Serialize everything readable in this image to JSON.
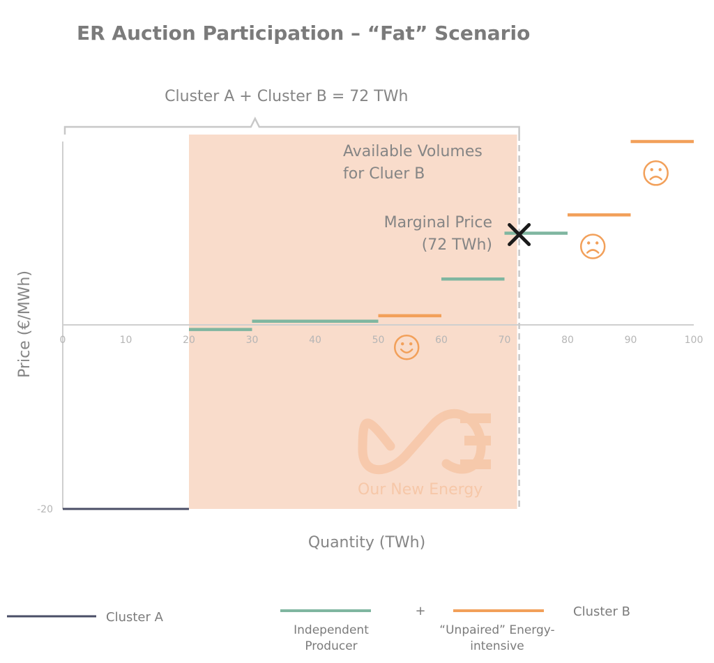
{
  "chart_data": {
    "type": "line",
    "title": "ER Auction Participation – “Fat” Scenario",
    "xlabel": "Quantity (TWh)",
    "ylabel": "Price (€/MWh)",
    "xlim": [
      0,
      100
    ],
    "ylim": [
      -20,
      20
    ],
    "x_ticks": [
      "0",
      "10",
      "20",
      "30",
      "40",
      "50",
      "60",
      "70",
      "80",
      "90",
      "100"
    ],
    "y_ticks": [
      "-20"
    ],
    "grid": false,
    "colors": {
      "cluster_a": "#4a4e66",
      "independent": "#7fb6a0",
      "unpaired": "#f2a05a",
      "shade": "#f9dccb"
    },
    "series": [
      {
        "name": "Cluster A",
        "color": "#4a4e66",
        "segments": [
          {
            "x": [
              0,
              20
            ],
            "y": -20
          }
        ]
      },
      {
        "name": "Independent Producer",
        "color": "#7fb6a0",
        "segments": [
          {
            "x": [
              20,
              30
            ],
            "y": -0.5
          },
          {
            "x": [
              30,
              50
            ],
            "y": 0.4
          },
          {
            "x": [
              60,
              70
            ],
            "y": 5
          },
          {
            "x": [
              70,
              80
            ],
            "y": 10
          }
        ]
      },
      {
        "name": "“Unpaired” Energy-intensive",
        "color": "#f2a05a",
        "segments": [
          {
            "x": [
              50,
              60
            ],
            "y": 1
          },
          {
            "x": [
              80,
              90
            ],
            "y": 12
          },
          {
            "x": [
              90,
              100
            ],
            "y": 20
          }
        ]
      }
    ],
    "shaded_region": {
      "x": [
        20,
        72
      ]
    },
    "bracket": {
      "x": [
        0,
        72
      ],
      "label": "Cluster A + Cluster B = 72 TWh"
    },
    "marginal_line_x": 72,
    "marker": {
      "x": 72,
      "y": 10,
      "label_line1": "Marginal Price",
      "label_line2": "(72 TWh)"
    },
    "region_label_line1": "Available Volumes",
    "region_label_line2": "for Cluer B",
    "faces": [
      {
        "x": 54.5,
        "y": -1,
        "mood": "happy"
      },
      {
        "x": 84,
        "y": 10,
        "mood": "sad"
      },
      {
        "x": 94,
        "y": 18,
        "mood": "sad"
      }
    ],
    "watermark": "Our New Energy",
    "legend": {
      "cluster_a": "Cluster A",
      "independent_l1": "Independent",
      "independent_l2": "Producer",
      "plus": "+",
      "unpaired_l1": "“Unpaired” Energy-",
      "unpaired_l2": "intensive",
      "cluster_b": "Cluster B"
    }
  }
}
